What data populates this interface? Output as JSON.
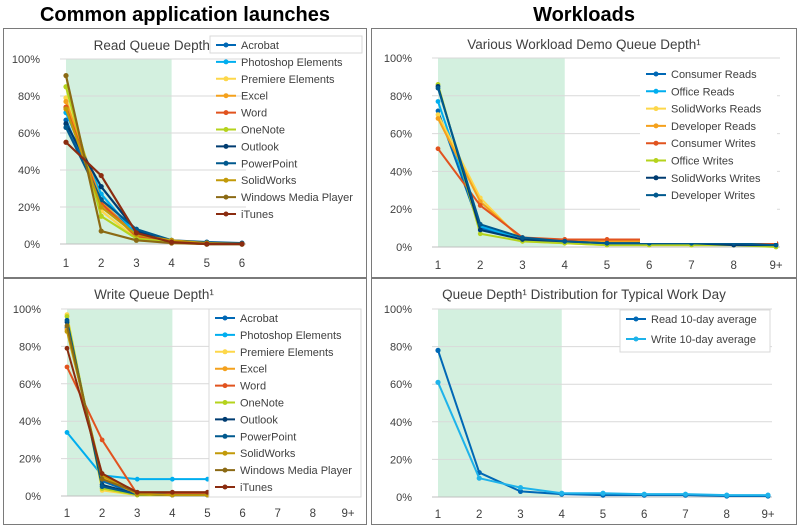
{
  "headings": {
    "left": "Common application launches",
    "right": "Workloads"
  },
  "colors": {
    "band": "#d3f0df",
    "grid": "#d9d9d9",
    "axis": "#bfbfbf",
    "Acrobat": "#0068b5",
    "Photoshop Elements": "#00aeef",
    "Premiere Elements": "#fdd74a",
    "Excel": "#f4a11d",
    "Word": "#e1531f",
    "OneNote": "#b5d31d",
    "Outlook": "#003c71",
    "PowerPoint": "#00598e",
    "SolidWorks": "#c29a09",
    "Windows Media Player": "#8b6a14",
    "iTunes": "#8b2c10",
    "Consumer Reads": "#0068b5",
    "Office Reads": "#00aeef",
    "SolidWorks Reads": "#fdd74a",
    "Developer Reads": "#f4a11d",
    "Consumer Writes": "#e1531f",
    "Office Writes": "#b5d31d",
    "SolidWorks Writes": "#003c71",
    "Developer Writes": "#00598e",
    "Read 10-day average": "#0068b5",
    "Write 10-day average": "#1fb3ea"
  },
  "chart_data": [
    {
      "type": "line",
      "title": "Read Queue Depth¹",
      "categories": [
        "1",
        "2",
        "3",
        "4",
        "5",
        "6"
      ],
      "ylim": [
        0,
        100
      ],
      "yticks": [
        "0%",
        "20%",
        "40%",
        "60%",
        "80%",
        "100%"
      ],
      "band": [
        "1",
        "4"
      ],
      "grid": true,
      "legend": "right",
      "series": [
        {
          "name": "Acrobat",
          "values": [
            67,
            22,
            6,
            1,
            0.5,
            0
          ]
        },
        {
          "name": "Photoshop Elements",
          "values": [
            71,
            27,
            5,
            1,
            0.5,
            0
          ]
        },
        {
          "name": "Premiere Elements",
          "values": [
            79,
            18,
            3,
            0.5,
            0,
            0
          ]
        },
        {
          "name": "Excel",
          "values": [
            77,
            23,
            4,
            1,
            0,
            0
          ]
        },
        {
          "name": "Word",
          "values": [
            74,
            22,
            4,
            1,
            0,
            0
          ]
        },
        {
          "name": "OneNote",
          "values": [
            85,
            15,
            3,
            1,
            0,
            0
          ]
        },
        {
          "name": "Outlook",
          "values": [
            65,
            31,
            7,
            2,
            0,
            0
          ]
        },
        {
          "name": "PowerPoint",
          "values": [
            63,
            24,
            8,
            2,
            1,
            0.5
          ]
        },
        {
          "name": "SolidWorks",
          "values": [
            73,
            20,
            5,
            2,
            0.5,
            0
          ]
        },
        {
          "name": "Windows Media Player",
          "values": [
            91,
            7,
            2,
            0.5,
            0,
            0
          ]
        },
        {
          "name": "iTunes",
          "values": [
            55,
            37,
            6,
            1,
            0,
            0
          ]
        }
      ]
    },
    {
      "type": "line",
      "title": "Various Workload Demo Queue Depth¹",
      "categories": [
        "1",
        "2",
        "3",
        "4",
        "5",
        "6",
        "7",
        "8",
        "9+"
      ],
      "ylim": [
        0,
        100
      ],
      "yticks": [
        "0%",
        "20%",
        "40%",
        "60%",
        "80%",
        "100%"
      ],
      "band": [
        "1",
        "4"
      ],
      "grid": true,
      "legend": "right",
      "series": [
        {
          "name": "Consumer Reads",
          "values": [
            72,
            10,
            4,
            3,
            2,
            2,
            2,
            2,
            1
          ]
        },
        {
          "name": "Office Reads",
          "values": [
            77,
            11,
            4,
            3,
            2,
            2,
            2,
            2,
            1
          ]
        },
        {
          "name": "SolidWorks Reads",
          "values": [
            70,
            26,
            3,
            2,
            1,
            1,
            1,
            1,
            1
          ]
        },
        {
          "name": "Developer Reads",
          "values": [
            68,
            24,
            4,
            3,
            3,
            3,
            3,
            3,
            1
          ]
        },
        {
          "name": "Consumer Writes",
          "values": [
            52,
            22,
            5,
            4,
            4,
            4,
            4,
            3,
            2
          ]
        },
        {
          "name": "Office Writes",
          "values": [
            86,
            7,
            3,
            2,
            1,
            1,
            1,
            1,
            0
          ]
        },
        {
          "name": "SolidWorks Writes",
          "values": [
            85,
            9,
            4,
            3,
            2,
            2,
            2,
            1,
            1
          ]
        },
        {
          "name": "Developer Writes",
          "values": [
            84,
            12,
            5,
            3,
            2,
            2,
            2,
            2,
            1
          ]
        }
      ]
    },
    {
      "type": "line",
      "title": "Write Queue Depth¹",
      "categories": [
        "1",
        "2",
        "3",
        "4",
        "5",
        "6",
        "7",
        "8",
        "9+"
      ],
      "ylim": [
        0,
        100
      ],
      "yticks": [
        "0%",
        "20%",
        "40%",
        "60%",
        "80%",
        "100%"
      ],
      "band": [
        "1",
        "4"
      ],
      "grid": true,
      "legend": "right",
      "series": [
        {
          "name": "Acrobat",
          "values": [
            90,
            8,
            1,
            1,
            1,
            1,
            0.5,
            0.5,
            0.5
          ]
        },
        {
          "name": "Photoshop Elements",
          "values": [
            34,
            11,
            9,
            9,
            9,
            9,
            9,
            8.5,
            0.5
          ]
        },
        {
          "name": "Premiere Elements",
          "values": [
            97,
            3,
            0.5,
            0.5,
            0.5,
            0.5,
            0.5,
            0.5,
            0.5
          ]
        },
        {
          "name": "Excel",
          "values": [
            89,
            10,
            1,
            1,
            1,
            1,
            1,
            0.5,
            0.5
          ]
        },
        {
          "name": "Word",
          "values": [
            69,
            30,
            1,
            1,
            1,
            1,
            0.5,
            0.5,
            0.5
          ]
        },
        {
          "name": "OneNote",
          "values": [
            96,
            4,
            0.5,
            0.5,
            0.5,
            0.5,
            0.5,
            0.5,
            0.5
          ]
        },
        {
          "name": "Outlook",
          "values": [
            93,
            6,
            1,
            0.5,
            0.5,
            0.5,
            0.5,
            0.5,
            0.5
          ]
        },
        {
          "name": "PowerPoint",
          "values": [
            94,
            5,
            1,
            0.5,
            0.5,
            0.5,
            0.5,
            0.5,
            0.5
          ]
        },
        {
          "name": "SolidWorks",
          "values": [
            88,
            11,
            1,
            0.5,
            0.5,
            0.5,
            0.5,
            0.5,
            0.5
          ]
        },
        {
          "name": "Windows Media Player",
          "values": [
            91,
            9,
            2,
            2,
            2,
            2,
            2,
            1,
            0.5
          ]
        },
        {
          "name": "iTunes",
          "values": [
            79,
            12,
            2,
            2,
            2,
            2,
            2,
            1,
            0.5
          ]
        }
      ]
    },
    {
      "type": "line",
      "title": "Queue Depth¹ Distribution for Typical Work Day",
      "categories": [
        "1",
        "2",
        "3",
        "4",
        "5",
        "6",
        "7",
        "8",
        "9+"
      ],
      "ylim": [
        0,
        100
      ],
      "yticks": [
        "0%",
        "20%",
        "40%",
        "60%",
        "80%",
        "100%"
      ],
      "band": [
        "1",
        "4"
      ],
      "grid": true,
      "legend": "top-right",
      "series": [
        {
          "name": "Read 10-day average",
          "values": [
            78,
            13,
            3,
            1.5,
            1,
            1,
            1,
            0.5,
            0.5
          ]
        },
        {
          "name": "Write 10-day average",
          "values": [
            61,
            10,
            5,
            2,
            2,
            1.5,
            1.5,
            1,
            1
          ]
        }
      ]
    }
  ]
}
